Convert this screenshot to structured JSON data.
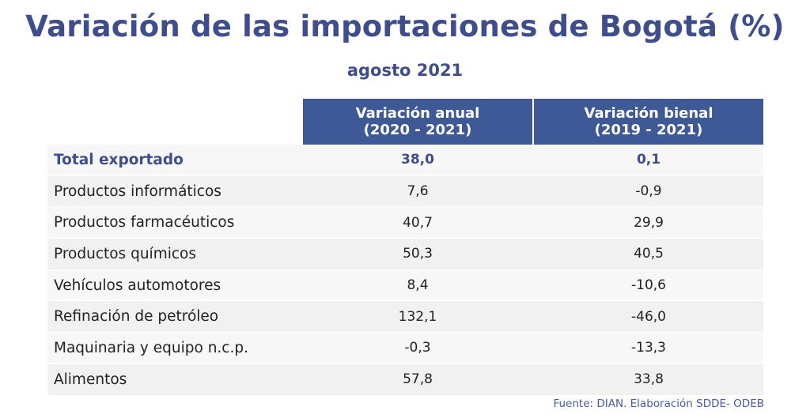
{
  "title": "Variación de las importaciones de Bogotá (%)",
  "subtitle": "agosto 2021",
  "table": {
    "headers": [
      {
        "line1": "Variación anual",
        "line2": "(2020 - 2021)"
      },
      {
        "line1": "Variación bienal",
        "line2": "(2019 - 2021)"
      }
    ],
    "rows": [
      {
        "label": "Total exportado",
        "anual": "38,0",
        "bienal": "0,1"
      },
      {
        "label": "Productos informáticos",
        "anual": "7,6",
        "bienal": "-0,9"
      },
      {
        "label": "Productos farmacéuticos",
        "anual": "40,7",
        "bienal": "29,9"
      },
      {
        "label": "Productos químicos",
        "anual": "50,3",
        "bienal": "40,5"
      },
      {
        "label": "Vehículos automotores",
        "anual": "8,4",
        "bienal": "-10,6"
      },
      {
        "label": "Refinación de petróleo",
        "anual": "132,1",
        "bienal": "-46,0"
      },
      {
        "label": "Maquinaria y equipo n.c.p.",
        "anual": "-0,3",
        "bienal": "-13,3"
      },
      {
        "label": "Alimentos",
        "anual": "57,8",
        "bienal": "33,8"
      }
    ]
  },
  "source": "Fuente: DIAN. Elaboración SDDE- ODEB",
  "colors": {
    "title": "#3f4d8c",
    "header_bg": "#3f5896",
    "row_bg": "#f4f4f5"
  }
}
